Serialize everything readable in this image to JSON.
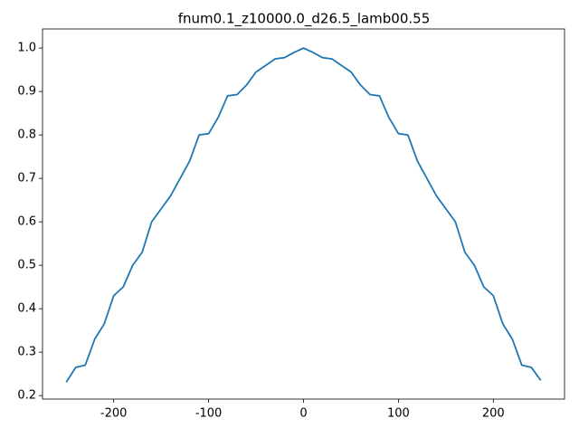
{
  "chart_data": {
    "type": "line",
    "title": "fnum0.1_z10000.0_d26.5_lamb00.55",
    "x": [
      -250,
      -240,
      -230,
      -220,
      -210,
      -200,
      -190,
      -180,
      -170,
      -160,
      -150,
      -140,
      -130,
      -120,
      -110,
      -100,
      -90,
      -80,
      -70,
      -60,
      -50,
      -40,
      -30,
      -20,
      -10,
      0,
      10,
      20,
      30,
      40,
      50,
      60,
      70,
      80,
      90,
      100,
      110,
      120,
      130,
      140,
      150,
      160,
      170,
      180,
      190,
      200,
      210,
      220,
      230,
      240,
      250
    ],
    "series": [
      {
        "name": "fnum0.1_z10000.0_d26.5_lamb00.55",
        "color": "#1f77b4",
        "values": [
          0.231,
          0.265,
          0.27,
          0.33,
          0.365,
          0.43,
          0.45,
          0.5,
          0.53,
          0.6,
          0.63,
          0.66,
          0.7,
          0.74,
          0.8,
          0.803,
          0.84,
          0.89,
          0.893,
          0.915,
          0.945,
          0.96,
          0.975,
          0.978,
          0.99,
          1.0,
          0.99,
          0.978,
          0.975,
          0.96,
          0.945,
          0.915,
          0.893,
          0.89,
          0.84,
          0.803,
          0.8,
          0.74,
          0.7,
          0.66,
          0.63,
          0.6,
          0.53,
          0.5,
          0.45,
          0.43,
          0.365,
          0.33,
          0.27,
          0.265,
          0.235
        ]
      }
    ],
    "xlim": [
      -275,
      275
    ],
    "xticks": [
      -200,
      -100,
      0,
      100,
      200
    ],
    "ylim": [
      0.192,
      1.044
    ],
    "yticks": [
      0.2,
      0.3,
      0.4,
      0.5,
      0.6,
      0.7,
      0.8,
      0.9,
      {
        "value": 1.0,
        "label": "1.0"
      }
    ],
    "grid": false
  }
}
